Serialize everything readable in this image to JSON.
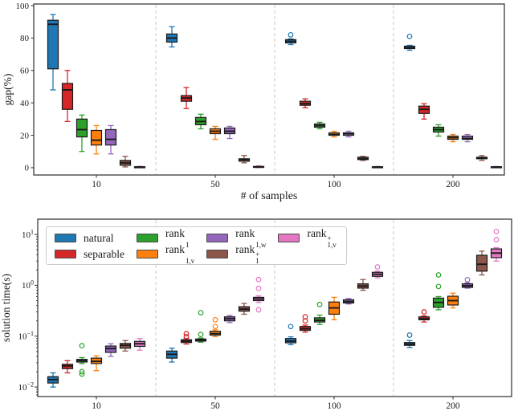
{
  "figure": {
    "background": "#ffffff",
    "axis_color": "#3c3c3c",
    "separator_color": "#c9c9c9"
  },
  "series": [
    {
      "key": "natural",
      "label": "natural",
      "color": "#1f77b4"
    },
    {
      "key": "separable",
      "label": "separable",
      "color": "#d62728"
    },
    {
      "key": "rank1",
      "label": "rank_{1}",
      "color": "#2ca02c"
    },
    {
      "key": "rank1v",
      "label": "rank_{1,v}",
      "color": "#ff7f0e"
    },
    {
      "key": "rank1w",
      "label": "rank_{1,w}",
      "color": "#9467bd"
    },
    {
      "key": "rank1p",
      "label": "rank_{1}^{+}",
      "color": "#8c564b"
    },
    {
      "key": "rank1vp",
      "label": "rank_{1,v}^{+}",
      "color": "#e377c2"
    }
  ],
  "legend": {
    "columns": [
      [
        "natural",
        "separable"
      ],
      [
        "rank1",
        "rank1v"
      ],
      [
        "rank1w",
        "rank1p"
      ],
      [
        "rank1vp"
      ]
    ]
  },
  "chart_data": [
    {
      "id": "gap",
      "type": "box",
      "title": "",
      "xlabel": "# of samples",
      "ylabel": "gap(%)",
      "yscale": "linear",
      "ylim": [
        -4.5,
        101
      ],
      "yticks": [
        0,
        20,
        40,
        60,
        80,
        100
      ],
      "categories": [
        "10",
        "50",
        "100",
        "200"
      ],
      "grid": false,
      "group_separators": true,
      "series": [
        {
          "name": "natural",
          "boxes": [
            {
              "whislo": 48,
              "q1": 61,
              "med": 88.5,
              "q3": 91,
              "whishi": 94.5,
              "fliers": []
            },
            {
              "whislo": 74.5,
              "q1": 77.5,
              "med": 80,
              "q3": 82.5,
              "whishi": 87,
              "fliers": []
            },
            {
              "whislo": 76,
              "q1": 77,
              "med": 78,
              "q3": 79,
              "whishi": 79.5,
              "fliers": [
                82
              ]
            },
            {
              "whislo": 72.5,
              "q1": 73.5,
              "med": 74,
              "q3": 75,
              "whishi": 75.5,
              "fliers": [
                81
              ]
            }
          ]
        },
        {
          "name": "separable",
          "boxes": [
            {
              "whislo": 28.5,
              "q1": 36,
              "med": 48,
              "q3": 52,
              "whishi": 60,
              "fliers": []
            },
            {
              "whislo": 36.5,
              "q1": 41,
              "med": 43,
              "q3": 44.5,
              "whishi": 49.5,
              "fliers": []
            },
            {
              "whislo": 37,
              "q1": 38.5,
              "med": 39.5,
              "q3": 41,
              "whishi": 42.5,
              "fliers": []
            },
            {
              "whislo": 30,
              "q1": 33.5,
              "med": 36,
              "q3": 38,
              "whishi": 39.5,
              "fliers": []
            }
          ]
        },
        {
          "name": "rank1",
          "boxes": [
            {
              "whislo": 10,
              "q1": 19,
              "med": 23.5,
              "q3": 30,
              "whishi": 32.5,
              "fliers": []
            },
            {
              "whislo": 24,
              "q1": 26.5,
              "med": 28.5,
              "q3": 31,
              "whishi": 33,
              "fliers": []
            },
            {
              "whislo": 24,
              "q1": 25,
              "med": 26,
              "q3": 27,
              "whishi": 28,
              "fliers": []
            },
            {
              "whislo": 19.5,
              "q1": 22,
              "med": 23.5,
              "q3": 25,
              "whishi": 26.5,
              "fliers": []
            }
          ]
        },
        {
          "name": "rank1v",
          "boxes": [
            {
              "whislo": 8.5,
              "q1": 14,
              "med": 17,
              "q3": 23,
              "whishi": 26,
              "fliers": []
            },
            {
              "whislo": 17.5,
              "q1": 21,
              "med": 22.5,
              "q3": 24,
              "whishi": 25.5,
              "fliers": []
            },
            {
              "whislo": 19,
              "q1": 20,
              "med": 20.5,
              "q3": 21.5,
              "whishi": 22.5,
              "fliers": []
            },
            {
              "whislo": 16,
              "q1": 17.5,
              "med": 18.5,
              "q3": 19.5,
              "whishi": 20.5,
              "fliers": []
            }
          ]
        },
        {
          "name": "rank1w",
          "boxes": [
            {
              "whislo": 8.5,
              "q1": 14,
              "med": 17.5,
              "q3": 23.5,
              "whishi": 26,
              "fliers": []
            },
            {
              "whislo": 18,
              "q1": 21,
              "med": 22.5,
              "q3": 24.5,
              "whishi": 25.5,
              "fliers": []
            },
            {
              "whislo": 19,
              "q1": 20,
              "med": 21,
              "q3": 21.5,
              "whishi": 22.5,
              "fliers": []
            },
            {
              "whislo": 16,
              "q1": 17.5,
              "med": 18,
              "q3": 19.5,
              "whishi": 20.5,
              "fliers": []
            }
          ]
        },
        {
          "name": "rank1p",
          "boxes": [
            {
              "whislo": 0.5,
              "q1": 1.5,
              "med": 3,
              "q3": 4.5,
              "whishi": 7,
              "fliers": []
            },
            {
              "whislo": 3,
              "q1": 4,
              "med": 5,
              "q3": 5.5,
              "whishi": 7.5,
              "fliers": []
            },
            {
              "whislo": 4.5,
              "q1": 5,
              "med": 5.5,
              "q3": 6.5,
              "whishi": 7,
              "fliers": []
            },
            {
              "whislo": 4.5,
              "q1": 5.5,
              "med": 6,
              "q3": 6.5,
              "whishi": 7.5,
              "fliers": []
            }
          ]
        },
        {
          "name": "rank1vp",
          "boxes": [
            {
              "whislo": 0.1,
              "q1": 0.2,
              "med": 0.4,
              "q3": 0.6,
              "whishi": 0.9,
              "fliers": []
            },
            {
              "whislo": 0.1,
              "q1": 0.3,
              "med": 0.5,
              "q3": 0.8,
              "whishi": 1.2,
              "fliers": []
            },
            {
              "whislo": 0.1,
              "q1": 0.2,
              "med": 0.4,
              "q3": 0.6,
              "whishi": 0.8,
              "fliers": []
            },
            {
              "whislo": 0.1,
              "q1": 0.2,
              "med": 0.4,
              "q3": 0.6,
              "whishi": 0.8,
              "fliers": []
            }
          ]
        }
      ]
    },
    {
      "id": "time",
      "type": "box",
      "title": "",
      "xlabel": "",
      "ylabel": "solution time(s)",
      "yscale": "log",
      "ylim": [
        0.0065,
        20
      ],
      "yticks": [
        0.01,
        0.1,
        1,
        10
      ],
      "ytick_exponents": [
        -2,
        -1,
        0,
        1
      ],
      "categories": [
        "10",
        "50",
        "100",
        "200"
      ],
      "grid": false,
      "group_separators": true,
      "legend_position": "upper left",
      "series": [
        {
          "name": "natural",
          "boxes": [
            {
              "whislo": 0.01,
              "q1": 0.012,
              "med": 0.014,
              "q3": 0.016,
              "whishi": 0.019,
              "fliers": []
            },
            {
              "whislo": 0.031,
              "q1": 0.037,
              "med": 0.044,
              "q3": 0.051,
              "whishi": 0.058,
              "fliers": []
            },
            {
              "whislo": 0.068,
              "q1": 0.074,
              "med": 0.08,
              "q3": 0.09,
              "whishi": 0.097,
              "fliers": [
                0.155
              ]
            },
            {
              "whislo": 0.06,
              "q1": 0.066,
              "med": 0.07,
              "q3": 0.075,
              "whishi": 0.082,
              "fliers": [
                0.105
              ]
            }
          ]
        },
        {
          "name": "separable",
          "boxes": [
            {
              "whislo": 0.019,
              "q1": 0.023,
              "med": 0.026,
              "q3": 0.028,
              "whishi": 0.033,
              "fliers": []
            },
            {
              "whislo": 0.07,
              "q1": 0.075,
              "med": 0.08,
              "q3": 0.085,
              "whishi": 0.09,
              "fliers": [
                0.112,
                0.098
              ]
            },
            {
              "whislo": 0.12,
              "q1": 0.13,
              "med": 0.14,
              "q3": 0.155,
              "whishi": 0.165,
              "fliers": [
                0.24,
                0.2
              ]
            },
            {
              "whislo": 0.19,
              "q1": 0.21,
              "med": 0.22,
              "q3": 0.24,
              "whishi": 0.25,
              "fliers": [
                0.3
              ]
            }
          ]
        },
        {
          "name": "rank1",
          "boxes": [
            {
              "whislo": 0.029,
              "q1": 0.031,
              "med": 0.033,
              "q3": 0.035,
              "whishi": 0.038,
              "fliers": [
                0.065,
                0.02,
                0.018
              ]
            },
            {
              "whislo": 0.076,
              "q1": 0.08,
              "med": 0.084,
              "q3": 0.088,
              "whishi": 0.092,
              "fliers": [
                0.29,
                0.108
              ]
            },
            {
              "whislo": 0.17,
              "q1": 0.19,
              "med": 0.205,
              "q3": 0.23,
              "whishi": 0.26,
              "fliers": [
                0.42
              ]
            },
            {
              "whislo": 0.33,
              "q1": 0.37,
              "med": 0.46,
              "q3": 0.56,
              "whishi": 0.6,
              "fliers": [
                1.6,
                0.95
              ]
            }
          ]
        },
        {
          "name": "rank1v",
          "boxes": [
            {
              "whislo": 0.021,
              "q1": 0.029,
              "med": 0.032,
              "q3": 0.037,
              "whishi": 0.041,
              "fliers": []
            },
            {
              "whislo": 0.098,
              "q1": 0.105,
              "med": 0.112,
              "q3": 0.125,
              "whishi": 0.133,
              "fliers": [
                0.21,
                0.155
              ]
            },
            {
              "whislo": 0.21,
              "q1": 0.27,
              "med": 0.36,
              "q3": 0.47,
              "whishi": 0.58,
              "fliers": []
            },
            {
              "whislo": 0.36,
              "q1": 0.41,
              "med": 0.5,
              "q3": 0.61,
              "whishi": 0.7,
              "fliers": []
            }
          ]
        },
        {
          "name": "rank1w",
          "boxes": [
            {
              "whislo": 0.04,
              "q1": 0.048,
              "med": 0.057,
              "q3": 0.064,
              "whishi": 0.071,
              "fliers": []
            },
            {
              "whislo": 0.185,
              "q1": 0.2,
              "med": 0.22,
              "q3": 0.24,
              "whishi": 0.255,
              "fliers": []
            },
            {
              "whislo": 0.43,
              "q1": 0.45,
              "med": 0.48,
              "q3": 0.52,
              "whishi": 0.55,
              "fliers": []
            },
            {
              "whislo": 0.88,
              "q1": 0.91,
              "med": 0.98,
              "q3": 1.07,
              "whishi": 1.12,
              "fliers": [
                1.29
              ]
            }
          ]
        },
        {
          "name": "rank1p",
          "boxes": [
            {
              "whislo": 0.051,
              "q1": 0.058,
              "med": 0.066,
              "q3": 0.072,
              "whishi": 0.082,
              "fliers": []
            },
            {
              "whislo": 0.27,
              "q1": 0.31,
              "med": 0.34,
              "q3": 0.38,
              "whishi": 0.44,
              "fliers": []
            },
            {
              "whislo": 0.8,
              "q1": 0.88,
              "med": 0.97,
              "q3": 1.07,
              "whishi": 1.3,
              "fliers": []
            },
            {
              "whislo": 1.6,
              "q1": 1.9,
              "med": 2.6,
              "q3": 3.9,
              "whishi": 4.7,
              "fliers": []
            }
          ]
        },
        {
          "name": "rank1vp",
          "boxes": [
            {
              "whislo": 0.053,
              "q1": 0.063,
              "med": 0.071,
              "q3": 0.079,
              "whishi": 0.09,
              "fliers": []
            },
            {
              "whislo": 0.46,
              "q1": 0.5,
              "med": 0.54,
              "q3": 0.58,
              "whishi": 0.62,
              "fliers": [
                1.3,
                0.87,
                0.33
              ]
            },
            {
              "whislo": 1.4,
              "q1": 1.5,
              "med": 1.65,
              "q3": 1.8,
              "whishi": 1.9,
              "fliers": [
                2.3
              ]
            },
            {
              "whislo": 3.0,
              "q1": 3.5,
              "med": 4.3,
              "q3": 5.2,
              "whishi": 5.5,
              "fliers": [
                11.5,
                7.9
              ]
            }
          ]
        }
      ]
    }
  ]
}
